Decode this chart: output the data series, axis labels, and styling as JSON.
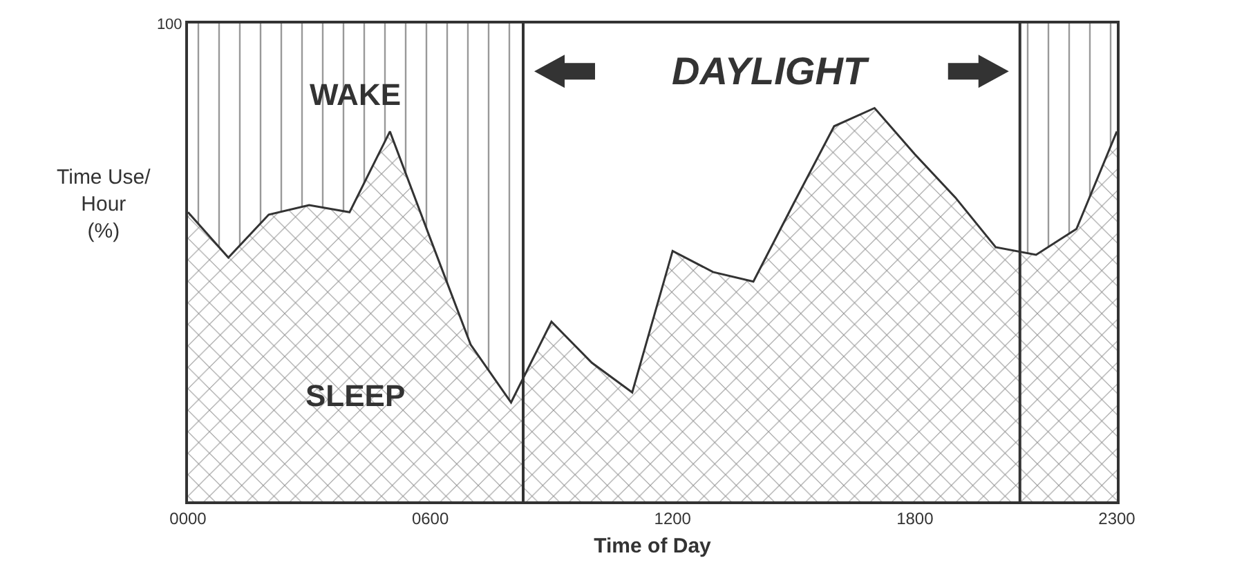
{
  "chart_data": {
    "type": "area",
    "xlabel": "Time of Day",
    "ylabel": "Time Use/\nHour\n(%)",
    "x": [
      0,
      100,
      200,
      300,
      400,
      500,
      600,
      700,
      800,
      900,
      1000,
      1100,
      1200,
      1300,
      1400,
      1500,
      1600,
      1700,
      1800,
      1900,
      2000,
      2100,
      2200,
      2300
    ],
    "series": [
      {
        "name": "SLEEP",
        "color": "#333333",
        "values": [
          60.5,
          51,
          60,
          62,
          60.5,
          77.4,
          55,
          32.8,
          20.7,
          37.6,
          29,
          22.8,
          52.4,
          48,
          46,
          62.4,
          78.5,
          82.3,
          72.6,
          63.6,
          53.2,
          51.6,
          57,
          77.4
        ]
      }
    ],
    "xlim": [
      0,
      2300
    ],
    "xticks": [
      {
        "value": 0,
        "label": "0000"
      },
      {
        "value": 600,
        "label": "0600"
      },
      1200,
      1800,
      2300
    ],
    "ylim": [
      0,
      100
    ],
    "yticks": [
      100
    ],
    "bands": [
      {
        "axis": "x",
        "from": 0,
        "to": 830,
        "label": "WAKE",
        "color": "#333333"
      },
      {
        "axis": "x",
        "from": 2060,
        "to": 2300,
        "color": "#333333"
      }
    ],
    "ref_lines": [
      {
        "axis": "x",
        "value": 830,
        "color": "#333333"
      },
      {
        "axis": "x",
        "value": 2060,
        "color": "#333333"
      }
    ],
    "annotations": [
      "DAYLIGHT"
    ]
  }
}
